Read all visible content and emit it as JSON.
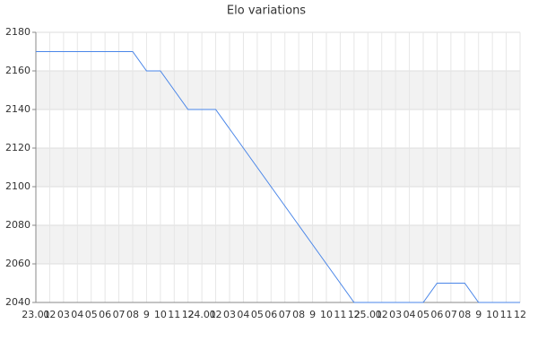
{
  "chart_data": {
    "type": "line",
    "title": "Elo variations",
    "categories": [
      "23.01",
      "02",
      "03",
      "04",
      "05",
      "06",
      "07",
      "08",
      "9",
      "10",
      "11",
      "12",
      "24.01",
      "02",
      "03",
      "04",
      "05",
      "06",
      "07",
      "08",
      "9",
      "10",
      "11",
      "12",
      "25.01",
      "02",
      "03",
      "04",
      "05",
      "06",
      "07",
      "08",
      "9",
      "10",
      "11",
      "12"
    ],
    "series": [
      {
        "name": "Elo",
        "color": "#4a86e8",
        "values": [
          2170,
          2170,
          2170,
          2170,
          2170,
          2170,
          2170,
          2170,
          2160,
          2160,
          2150,
          2140,
          2140,
          2140,
          2130,
          2120,
          2110,
          2100,
          2090,
          2080,
          2070,
          2060,
          2050,
          2040,
          2040,
          2040,
          2040,
          2040,
          2040,
          2050,
          2050,
          2050,
          2040,
          2040,
          2040,
          2040
        ]
      }
    ],
    "ylim": [
      2040,
      2180
    ],
    "yticks": [
      2040,
      2060,
      2080,
      2100,
      2120,
      2140,
      2160,
      2180
    ],
    "grid": true
  }
}
